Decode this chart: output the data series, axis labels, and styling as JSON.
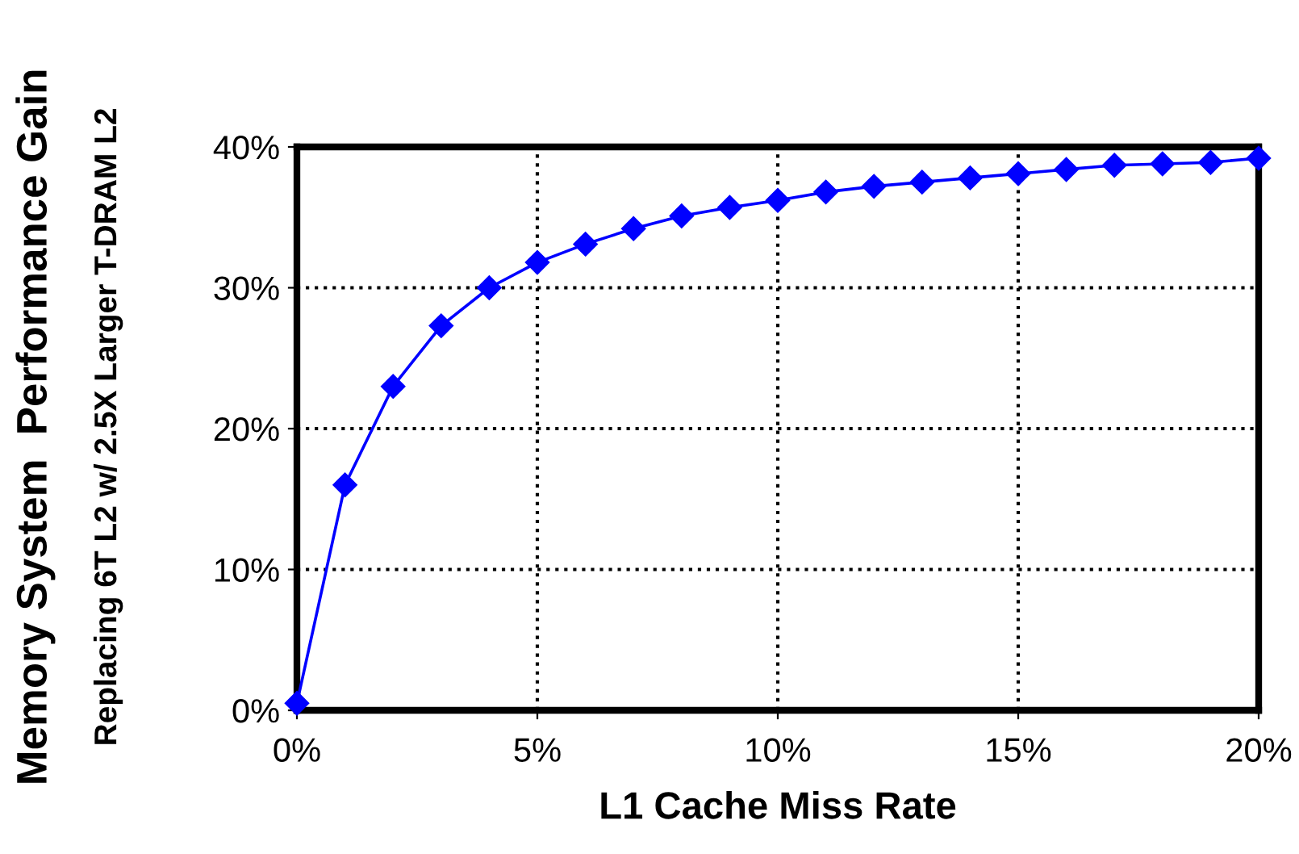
{
  "chart_data": {
    "type": "line",
    "xlabel": "L1 Cache Miss Rate",
    "ylabel": "Memory System  Performance Gain",
    "annotations": [
      "Replacing 6T L2 w/ 2.5X Larger T-DRAM L2"
    ],
    "x": [
      0,
      1,
      2,
      3,
      4,
      5,
      6,
      7,
      8,
      9,
      10,
      11,
      12,
      13,
      14,
      15,
      16,
      17,
      18,
      19,
      20
    ],
    "series": [
      {
        "color": "#0000ff",
        "values": [
          0.5,
          16,
          23,
          27.3,
          30,
          31.8,
          33.1,
          34.2,
          35.1,
          35.7,
          36.2,
          36.8,
          37.2,
          37.5,
          37.8,
          38.1,
          38.4,
          38.7,
          38.8,
          38.9,
          39.2
        ]
      }
    ],
    "xlim": [
      0,
      20
    ],
    "ylim": [
      0,
      40
    ],
    "xticks": [
      {
        "value": 0,
        "label": "0%"
      },
      {
        "value": 5,
        "label": "5%"
      },
      {
        "value": 10,
        "label": "10%"
      },
      {
        "value": 15,
        "label": "15%"
      },
      {
        "value": 20,
        "label": "20%"
      }
    ],
    "yticks": [
      {
        "value": 0,
        "label": "0%"
      },
      {
        "value": 10,
        "label": "10%"
      },
      {
        "value": 20,
        "label": "20%"
      },
      {
        "value": 30,
        "label": "30%"
      },
      {
        "value": 40,
        "label": "40%"
      }
    ],
    "grid": true,
    "marker": "diamond",
    "line_style": "solid"
  }
}
